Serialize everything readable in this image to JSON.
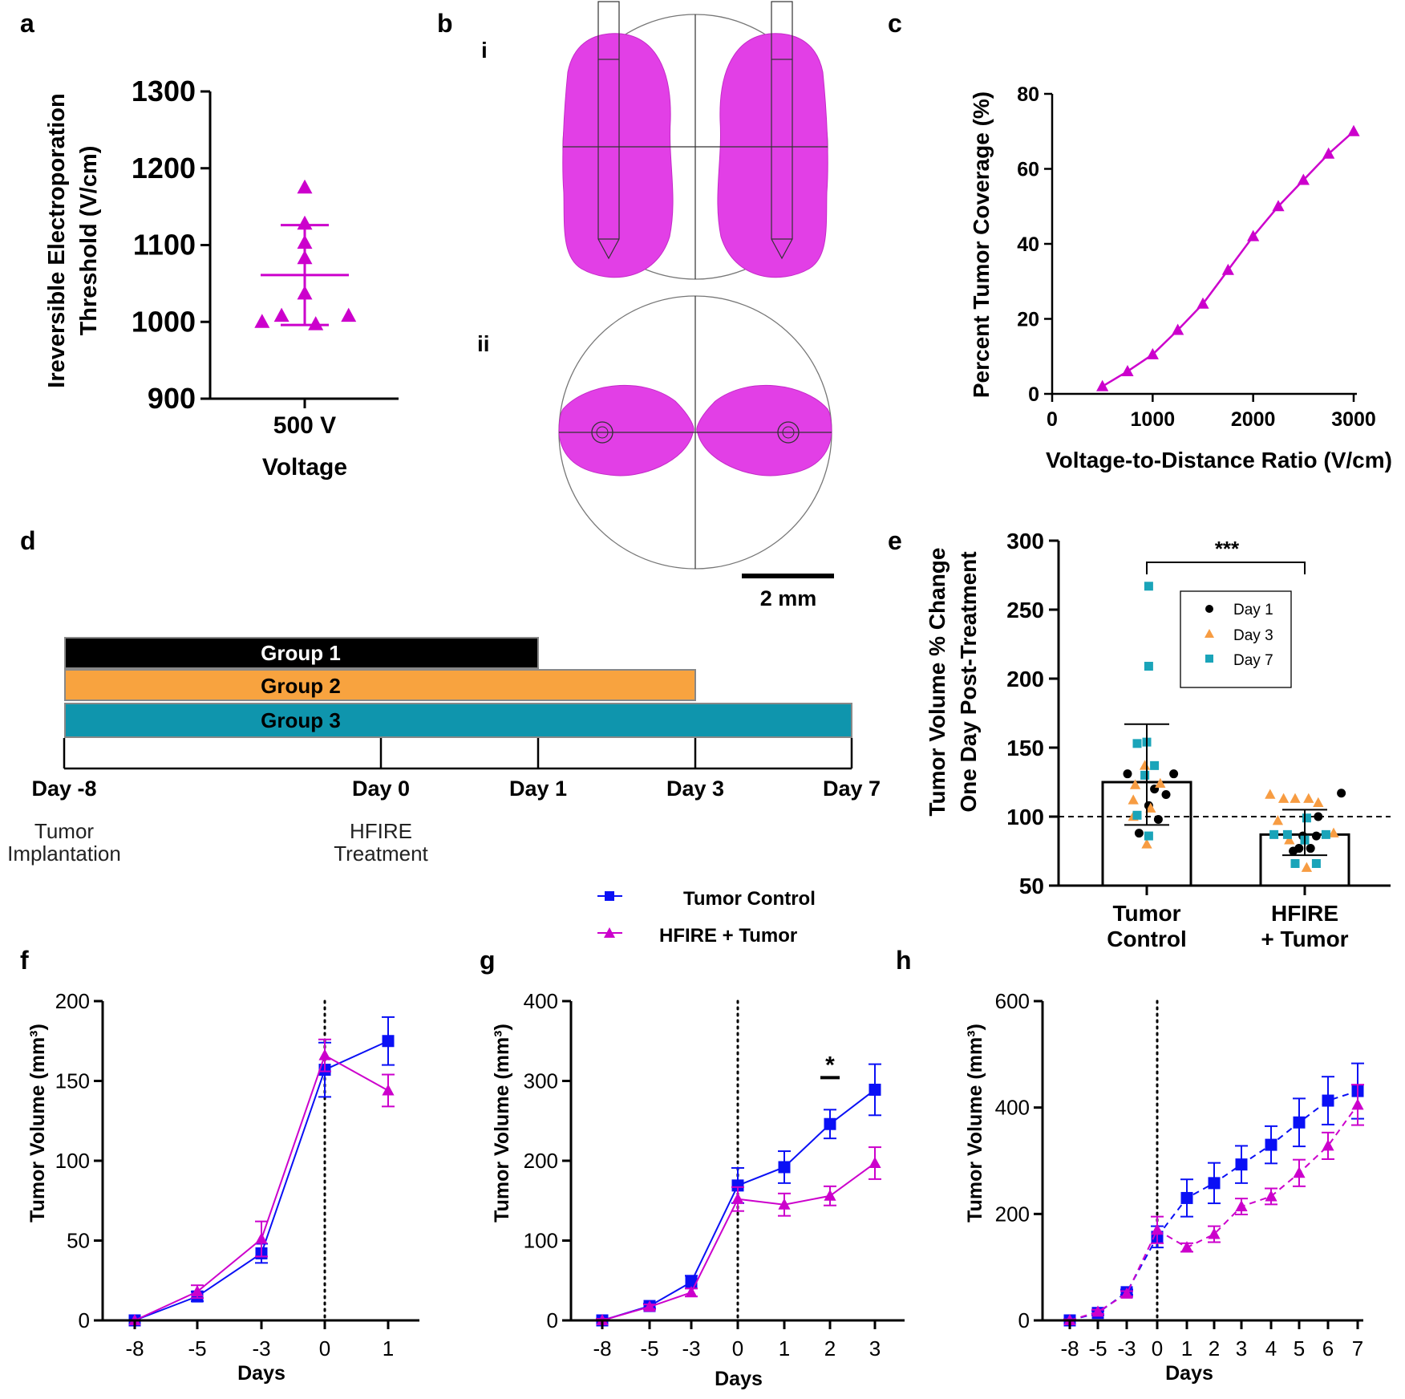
{
  "colors": {
    "magenta": "#cc00cc",
    "blob": "#e23fe6",
    "blue": "#0a10f5",
    "black": "#000000",
    "orange": "#f8a33f",
    "teal": "#0f95ad",
    "dataOrange": "#f79c42",
    "dataTeal": "#1aa4b9"
  },
  "panel_labels": {
    "a": "a",
    "b": "b",
    "c": "c",
    "d": "d",
    "e": "e",
    "f": "f",
    "g": "g",
    "h": "h"
  },
  "b_sublabels": {
    "i": "i",
    "ii": "ii"
  },
  "scale_bar": "2 mm",
  "timeline": {
    "groups": [
      "Group 1",
      "Group 2",
      "Group 3"
    ],
    "days": [
      {
        "label": "Day -8",
        "value": -8,
        "note": [
          "Tumor",
          "Implantation"
        ]
      },
      {
        "label": "Day 0",
        "value": 0,
        "note": [
          "HFIRE",
          "Treatment"
        ]
      },
      {
        "label": "Day 1",
        "value": 1
      },
      {
        "label": "Day 3",
        "value": 3
      },
      {
        "label": "Day 7",
        "value": 7
      }
    ]
  },
  "legend_fgh": {
    "control": "Tumor Control",
    "hfire": "HFIRE + Tumor"
  },
  "chart_data": [
    {
      "id": "a",
      "type": "scatter",
      "title": "",
      "ylabel_lines": [
        "Ireversible Electroporation",
        "Threshold  (V/cm)"
      ],
      "xlabel": "Voltage",
      "category": "500 V",
      "ylim": [
        900,
        1300
      ],
      "yticks": [
        900,
        1000,
        1100,
        1200,
        1300
      ],
      "points": [
        {
          "dx": 0,
          "y": 1175
        },
        {
          "dx": 0,
          "y": 1128
        },
        {
          "dx": 0,
          "y": 1103
        },
        {
          "dx": 0,
          "y": 1083
        },
        {
          "dx": 0,
          "y": 1037
        },
        {
          "dx": -0.7,
          "y": 1000
        },
        {
          "dx": -0.38,
          "y": 1008
        },
        {
          "dx": 0.18,
          "y": 997
        },
        {
          "dx": 0.72,
          "y": 1008
        }
      ],
      "mean": 1061,
      "sd_upper": 1126,
      "sd_lower": 996
    },
    {
      "id": "c",
      "type": "line",
      "ylabel": "Percent Tumor  Coverage (%)",
      "xlabel": "Voltage-to-Distance Ratio (V/cm)",
      "xlim": [
        0,
        3000
      ],
      "ylim": [
        0,
        80
      ],
      "xticks": [
        0,
        1000,
        2000,
        3000
      ],
      "yticks": [
        0,
        20,
        40,
        60,
        80
      ],
      "x": [
        500,
        750,
        1000,
        1250,
        1500,
        1750,
        2000,
        2250,
        2500,
        2750,
        3000
      ],
      "y": [
        2,
        6,
        10.5,
        17,
        24,
        33,
        42,
        50,
        57,
        64,
        70
      ]
    },
    {
      "id": "e",
      "type": "bar",
      "ylabel_lines": [
        "Tumor Volume % Change",
        "One Day Post-Treatment"
      ],
      "categories": [
        [
          "Tumor",
          "Control"
        ],
        [
          "HFIRE",
          "+ Tumor"
        ]
      ],
      "ylim": [
        50,
        300
      ],
      "yticks": [
        50,
        100,
        150,
        200,
        250,
        300
      ],
      "values": [
        125,
        87
      ],
      "sd_upper": [
        167,
        105
      ],
      "sd_lower": [
        94,
        72
      ],
      "reference_line": 100,
      "significance": "***",
      "legend": [
        "Day 1",
        "Day 3",
        "Day 7"
      ],
      "points": {
        "Tumor Control": {
          "Day 1": [
            {
              "dx": -0.5,
              "y": 131
            },
            {
              "dx": 0.7,
              "y": 131
            },
            {
              "dx": 0.2,
              "y": 120
            },
            {
              "dx": 0.5,
              "y": 116
            },
            {
              "dx": -0.2,
              "y": 88
            },
            {
              "dx": 0.3,
              "y": 98
            },
            {
              "dx": 0.05,
              "y": 108
            }
          ],
          "Day 3": [
            {
              "dx": -0.05,
              "y": 137
            },
            {
              "dx": -0.3,
              "y": 123
            },
            {
              "dx": 0.35,
              "y": 124
            },
            {
              "dx": -0.35,
              "y": 112
            },
            {
              "dx": 0.1,
              "y": 106
            },
            {
              "dx": -0.35,
              "y": 100
            },
            {
              "dx": 0.0,
              "y": 80
            }
          ],
          "Day 7": [
            {
              "dx": 0.05,
              "y": 267
            },
            {
              "dx": 0.05,
              "y": 209
            },
            {
              "dx": 0.0,
              "y": 154
            },
            {
              "dx": -0.25,
              "y": 153
            },
            {
              "dx": 0.2,
              "y": 137
            },
            {
              "dx": -0.05,
              "y": 130
            },
            {
              "dx": -0.25,
              "y": 101
            },
            {
              "dx": 0.05,
              "y": 86
            }
          ]
        },
        "HFIRE + Tumor": {
          "Day 1": [
            {
              "dx": 0.95,
              "y": 117
            },
            {
              "dx": 0.35,
              "y": 100
            },
            {
              "dx": -0.05,
              "y": 86
            },
            {
              "dx": 0.3,
              "y": 86
            },
            {
              "dx": -0.15,
              "y": 77
            },
            {
              "dx": 0.15,
              "y": 77
            },
            {
              "dx": -0.3,
              "y": 75
            }
          ],
          "Day 3": [
            {
              "dx": -0.9,
              "y": 116
            },
            {
              "dx": -0.55,
              "y": 113
            },
            {
              "dx": -0.25,
              "y": 113
            },
            {
              "dx": 0.1,
              "y": 113
            },
            {
              "dx": 0.35,
              "y": 110
            },
            {
              "dx": -0.7,
              "y": 97
            },
            {
              "dx": 0.75,
              "y": 88
            },
            {
              "dx": -0.4,
              "y": 83
            },
            {
              "dx": 0.05,
              "y": 63
            }
          ],
          "Day 7": [
            {
              "dx": 0.05,
              "y": 99
            },
            {
              "dx": -0.8,
              "y": 87
            },
            {
              "dx": -0.45,
              "y": 87
            },
            {
              "dx": 0.55,
              "y": 87
            },
            {
              "dx": 0.0,
              "y": 83
            },
            {
              "dx": -0.25,
              "y": 66
            },
            {
              "dx": 0.3,
              "y": 66
            }
          ]
        }
      }
    },
    {
      "id": "f",
      "type": "line",
      "ylabel": "Tumor Volume (mm³)",
      "xlabel": "Days",
      "ylim": [
        0,
        200
      ],
      "yticks": [
        0,
        50,
        100,
        150,
        200
      ],
      "xcategories": [
        "-8",
        "-5",
        "-3",
        "0",
        "1"
      ],
      "treatment_day": "0",
      "series": [
        {
          "name": "Tumor Control",
          "values": [
            0,
            15,
            42,
            157,
            175
          ],
          "err": [
            1,
            3,
            6,
            17,
            15
          ],
          "dashed": false
        },
        {
          "name": "HFIRE + Tumor",
          "values": [
            0,
            18,
            51,
            166,
            144
          ],
          "err": [
            1,
            4,
            11,
            10,
            10
          ],
          "dashed": false
        }
      ]
    },
    {
      "id": "g",
      "type": "line",
      "ylabel": "Tumor Volume (mm³)",
      "xlabel": "Days",
      "ylim": [
        0,
        400
      ],
      "yticks": [
        0,
        100,
        200,
        300,
        400
      ],
      "xcategories": [
        "-8",
        "-5",
        "-3",
        "0",
        "1",
        "2",
        "3"
      ],
      "treatment_day": "0",
      "significance": {
        "label": "*",
        "at": "2"
      },
      "series": [
        {
          "name": "Tumor Control",
          "values": [
            0,
            18,
            48,
            169,
            192,
            246,
            289
          ],
          "err": [
            2,
            3,
            8,
            22,
            20,
            18,
            32
          ],
          "dashed": false
        },
        {
          "name": "HFIRE + Tumor",
          "values": [
            0,
            17,
            35,
            152,
            145,
            156,
            197
          ],
          "err": [
            2,
            3,
            5,
            15,
            14,
            12,
            20
          ],
          "dashed": false
        }
      ]
    },
    {
      "id": "h",
      "type": "line",
      "ylabel": "Tumor Volume (mm³)",
      "xlabel": "Days",
      "ylim": [
        0,
        600
      ],
      "yticks": [
        0,
        200,
        400,
        600
      ],
      "xcategories": [
        "-8",
        "-5",
        "-3",
        "0",
        "1",
        "2",
        "3",
        "4",
        "5",
        "6",
        "7"
      ],
      "treatment_day": "0",
      "series": [
        {
          "name": "Tumor Control",
          "values": [
            0,
            14,
            53,
            157,
            230,
            258,
            293,
            330,
            372,
            413,
            431
          ],
          "err": [
            2,
            4,
            5,
            20,
            35,
            38,
            35,
            35,
            45,
            45,
            52
          ],
          "dashed": true
        },
        {
          "name": "HFIRE + Tumor",
          "values": [
            0,
            16,
            50,
            170,
            137,
            162,
            214,
            233,
            277,
            328,
            405
          ],
          "err": [
            2,
            4,
            5,
            25,
            8,
            15,
            15,
            15,
            25,
            25,
            38
          ],
          "dashed": true
        }
      ]
    }
  ]
}
